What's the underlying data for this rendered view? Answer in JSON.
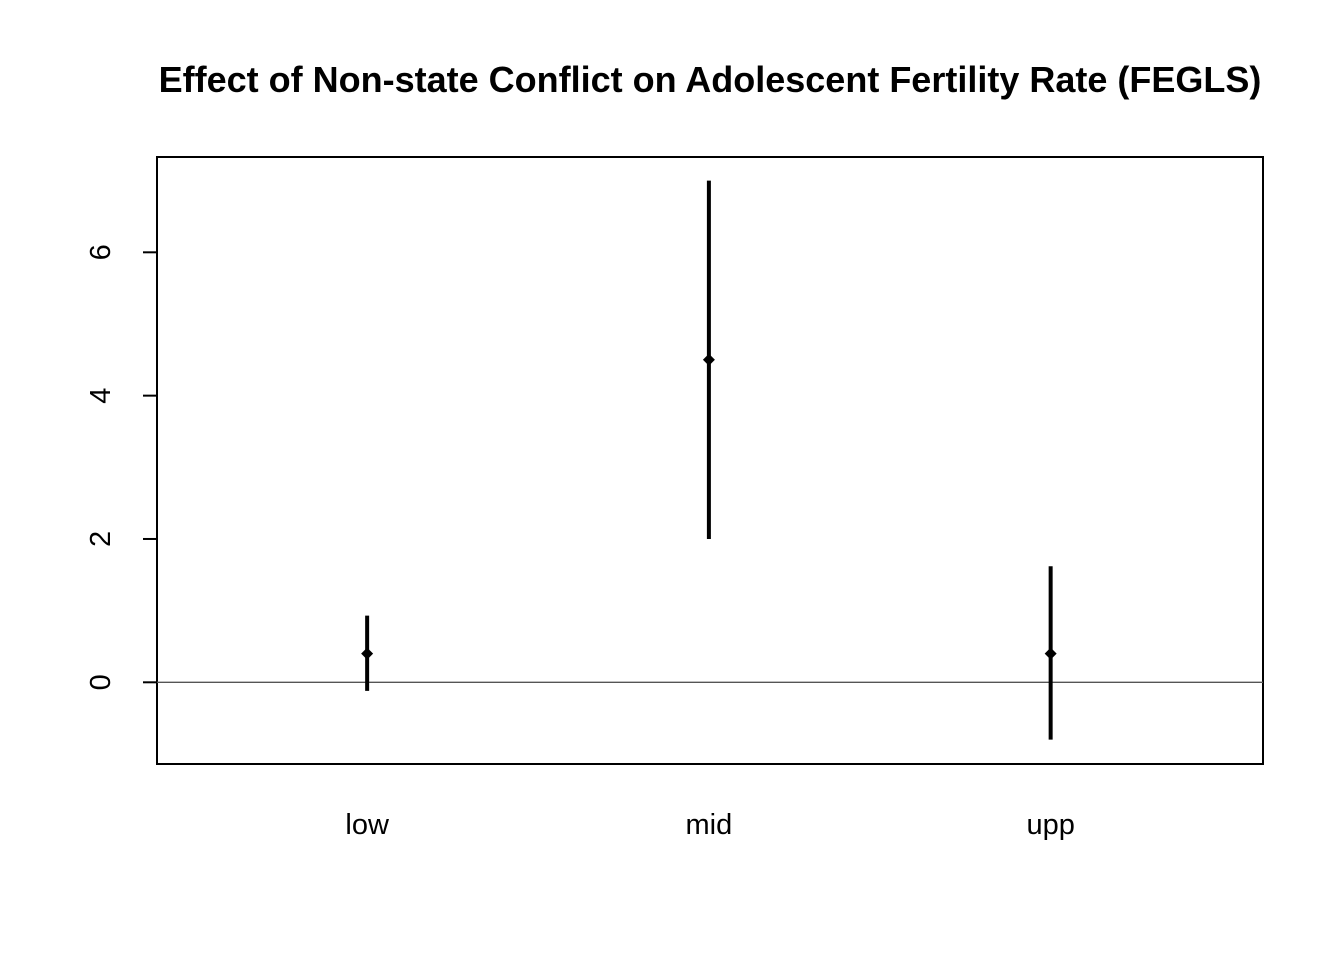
{
  "chart_data": {
    "type": "scatter",
    "title": "Effect of Non-state Conflict on Adolescent Fertility Rate (FEGLS)",
    "xlabel": "",
    "ylabel": "",
    "categories": [
      "low",
      "mid",
      "upp"
    ],
    "series": [
      {
        "estimates": [
          0.4,
          4.5,
          0.4
        ],
        "ci_lower": [
          -0.12,
          2.0,
          -0.8
        ],
        "ci_upper": [
          0.93,
          7.0,
          1.62
        ]
      }
    ],
    "yticks": [
      0,
      2,
      4,
      6
    ],
    "ylim": [
      -1.14,
      7.33
    ],
    "reference_line": 0,
    "grid": false,
    "legend": "none",
    "colors": {
      "marks": "#000000",
      "reference_line": "#555555"
    }
  }
}
